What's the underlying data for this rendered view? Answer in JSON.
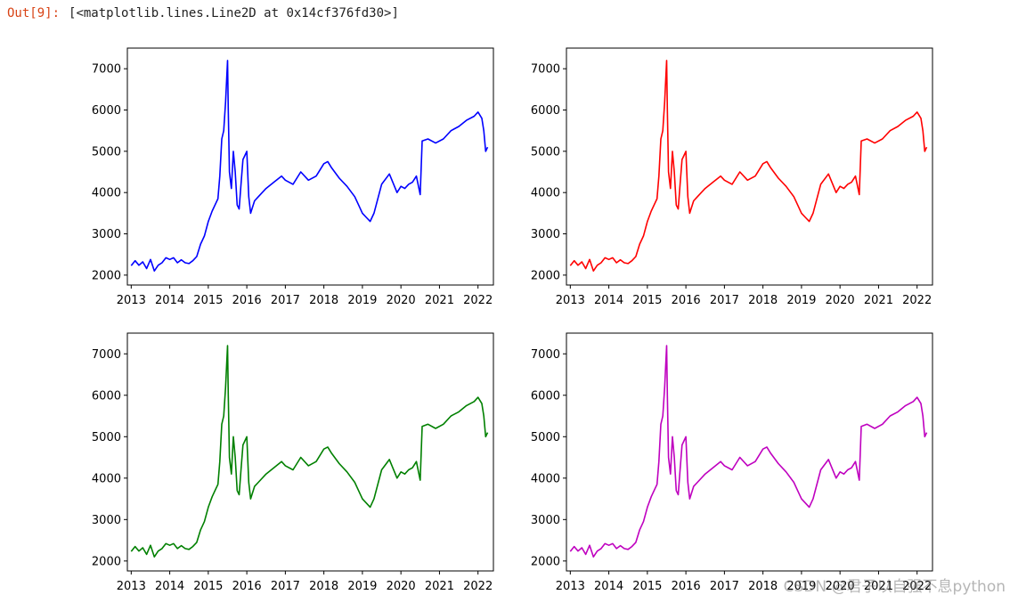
{
  "output": {
    "prompt": "Out[9]:",
    "text": "[<matplotlib.lines.Line2D at 0x14cf376fd30>]"
  },
  "watermark": "CSDN @君子以自强不息python",
  "chart_data": [
    {
      "type": "line",
      "color": "#0000ff",
      "x_ticks": [
        "2013",
        "2014",
        "2015",
        "2016",
        "2017",
        "2018",
        "2019",
        "2020",
        "2021",
        "2022"
      ],
      "y_ticks": [
        2000,
        3000,
        4000,
        5000,
        6000,
        7000
      ],
      "xlim": [
        2012.9,
        2022.4
      ],
      "ylim": [
        1760,
        7500
      ],
      "x": [
        2013.0,
        2013.1,
        2013.2,
        2013.3,
        2013.4,
        2013.5,
        2013.6,
        2013.7,
        2013.8,
        2013.9,
        2014.0,
        2014.1,
        2014.2,
        2014.3,
        2014.4,
        2014.5,
        2014.6,
        2014.7,
        2014.8,
        2014.9,
        2015.0,
        2015.1,
        2015.2,
        2015.25,
        2015.3,
        2015.35,
        2015.4,
        2015.45,
        2015.5,
        2015.52,
        2015.55,
        2015.6,
        2015.65,
        2015.7,
        2015.75,
        2015.8,
        2015.85,
        2015.9,
        2015.95,
        2016.0,
        2016.05,
        2016.1,
        2016.2,
        2016.3,
        2016.5,
        2016.7,
        2016.9,
        2017.0,
        2017.2,
        2017.4,
        2017.6,
        2017.8,
        2018.0,
        2018.1,
        2018.2,
        2018.4,
        2018.6,
        2018.8,
        2018.9,
        2019.0,
        2019.1,
        2019.2,
        2019.3,
        2019.5,
        2019.7,
        2019.9,
        2020.0,
        2020.1,
        2020.2,
        2020.3,
        2020.4,
        2020.5,
        2020.55,
        2020.7,
        2020.9,
        2021.1,
        2021.3,
        2021.5,
        2021.7,
        2021.9,
        2022.0,
        2022.1,
        2022.15,
        2022.2,
        2022.25
      ],
      "y": [
        2230,
        2350,
        2240,
        2320,
        2160,
        2380,
        2100,
        2240,
        2300,
        2420,
        2380,
        2420,
        2300,
        2370,
        2300,
        2280,
        2350,
        2450,
        2750,
        2950,
        3300,
        3550,
        3750,
        3850,
        4400,
        5300,
        5500,
        6200,
        7200,
        6000,
        4500,
        4100,
        5000,
        4500,
        3700,
        3600,
        4200,
        4800,
        4900,
        5000,
        3900,
        3500,
        3800,
        3900,
        4100,
        4250,
        4400,
        4300,
        4200,
        4500,
        4300,
        4400,
        4700,
        4750,
        4600,
        4350,
        4150,
        3900,
        3700,
        3500,
        3400,
        3300,
        3500,
        4200,
        4450,
        4000,
        4150,
        4100,
        4200,
        4250,
        4400,
        3950,
        5250,
        5300,
        5200,
        5300,
        5500,
        5600,
        5750,
        5850,
        5950,
        5800,
        5500,
        5000,
        5100
      ]
    },
    {
      "type": "line",
      "color": "#ff0000",
      "x_ticks": [
        "2013",
        "2014",
        "2015",
        "2016",
        "2017",
        "2018",
        "2019",
        "2020",
        "2021",
        "2022"
      ],
      "y_ticks": [
        2000,
        3000,
        4000,
        5000,
        6000,
        7000
      ],
      "xlim": [
        2012.9,
        2022.4
      ],
      "ylim": [
        1760,
        7500
      ],
      "x": [
        2013.0,
        2013.1,
        2013.2,
        2013.3,
        2013.4,
        2013.5,
        2013.6,
        2013.7,
        2013.8,
        2013.9,
        2014.0,
        2014.1,
        2014.2,
        2014.3,
        2014.4,
        2014.5,
        2014.6,
        2014.7,
        2014.8,
        2014.9,
        2015.0,
        2015.1,
        2015.2,
        2015.25,
        2015.3,
        2015.35,
        2015.4,
        2015.45,
        2015.5,
        2015.52,
        2015.55,
        2015.6,
        2015.65,
        2015.7,
        2015.75,
        2015.8,
        2015.85,
        2015.9,
        2015.95,
        2016.0,
        2016.05,
        2016.1,
        2016.2,
        2016.3,
        2016.5,
        2016.7,
        2016.9,
        2017.0,
        2017.2,
        2017.4,
        2017.6,
        2017.8,
        2018.0,
        2018.1,
        2018.2,
        2018.4,
        2018.6,
        2018.8,
        2018.9,
        2019.0,
        2019.1,
        2019.2,
        2019.3,
        2019.5,
        2019.7,
        2019.9,
        2020.0,
        2020.1,
        2020.2,
        2020.3,
        2020.4,
        2020.5,
        2020.55,
        2020.7,
        2020.9,
        2021.1,
        2021.3,
        2021.5,
        2021.7,
        2021.9,
        2022.0,
        2022.1,
        2022.15,
        2022.2,
        2022.25
      ],
      "y": [
        2230,
        2350,
        2240,
        2320,
        2160,
        2380,
        2100,
        2240,
        2300,
        2420,
        2380,
        2420,
        2300,
        2370,
        2300,
        2280,
        2350,
        2450,
        2750,
        2950,
        3300,
        3550,
        3750,
        3850,
        4400,
        5300,
        5500,
        6200,
        7200,
        6000,
        4500,
        4100,
        5000,
        4500,
        3700,
        3600,
        4200,
        4800,
        4900,
        5000,
        3900,
        3500,
        3800,
        3900,
        4100,
        4250,
        4400,
        4300,
        4200,
        4500,
        4300,
        4400,
        4700,
        4750,
        4600,
        4350,
        4150,
        3900,
        3700,
        3500,
        3400,
        3300,
        3500,
        4200,
        4450,
        4000,
        4150,
        4100,
        4200,
        4250,
        4400,
        3950,
        5250,
        5300,
        5200,
        5300,
        5500,
        5600,
        5750,
        5850,
        5950,
        5800,
        5500,
        5000,
        5100
      ]
    },
    {
      "type": "line",
      "color": "#008000",
      "x_ticks": [
        "2013",
        "2014",
        "2015",
        "2016",
        "2017",
        "2018",
        "2019",
        "2020",
        "2021",
        "2022"
      ],
      "y_ticks": [
        2000,
        3000,
        4000,
        5000,
        6000,
        7000
      ],
      "xlim": [
        2012.9,
        2022.4
      ],
      "ylim": [
        1760,
        7500
      ],
      "x": [
        2013.0,
        2013.1,
        2013.2,
        2013.3,
        2013.4,
        2013.5,
        2013.6,
        2013.7,
        2013.8,
        2013.9,
        2014.0,
        2014.1,
        2014.2,
        2014.3,
        2014.4,
        2014.5,
        2014.6,
        2014.7,
        2014.8,
        2014.9,
        2015.0,
        2015.1,
        2015.2,
        2015.25,
        2015.3,
        2015.35,
        2015.4,
        2015.45,
        2015.5,
        2015.52,
        2015.55,
        2015.6,
        2015.65,
        2015.7,
        2015.75,
        2015.8,
        2015.85,
        2015.9,
        2015.95,
        2016.0,
        2016.05,
        2016.1,
        2016.2,
        2016.3,
        2016.5,
        2016.7,
        2016.9,
        2017.0,
        2017.2,
        2017.4,
        2017.6,
        2017.8,
        2018.0,
        2018.1,
        2018.2,
        2018.4,
        2018.6,
        2018.8,
        2018.9,
        2019.0,
        2019.1,
        2019.2,
        2019.3,
        2019.5,
        2019.7,
        2019.9,
        2020.0,
        2020.1,
        2020.2,
        2020.3,
        2020.4,
        2020.5,
        2020.55,
        2020.7,
        2020.9,
        2021.1,
        2021.3,
        2021.5,
        2021.7,
        2021.9,
        2022.0,
        2022.1,
        2022.15,
        2022.2,
        2022.25
      ],
      "y": [
        2230,
        2350,
        2240,
        2320,
        2160,
        2380,
        2100,
        2240,
        2300,
        2420,
        2380,
        2420,
        2300,
        2370,
        2300,
        2280,
        2350,
        2450,
        2750,
        2950,
        3300,
        3550,
        3750,
        3850,
        4400,
        5300,
        5500,
        6200,
        7200,
        6000,
        4500,
        4100,
        5000,
        4500,
        3700,
        3600,
        4200,
        4800,
        4900,
        5000,
        3900,
        3500,
        3800,
        3900,
        4100,
        4250,
        4400,
        4300,
        4200,
        4500,
        4300,
        4400,
        4700,
        4750,
        4600,
        4350,
        4150,
        3900,
        3700,
        3500,
        3400,
        3300,
        3500,
        4200,
        4450,
        4000,
        4150,
        4100,
        4200,
        4250,
        4400,
        3950,
        5250,
        5300,
        5200,
        5300,
        5500,
        5600,
        5750,
        5850,
        5950,
        5800,
        5500,
        5000,
        5100
      ]
    },
    {
      "type": "line",
      "color": "#bf00bf",
      "x_ticks": [
        "2013",
        "2014",
        "2015",
        "2016",
        "2017",
        "2018",
        "2019",
        "2020",
        "2021",
        "2022"
      ],
      "y_ticks": [
        2000,
        3000,
        4000,
        5000,
        6000,
        7000
      ],
      "xlim": [
        2012.9,
        2022.4
      ],
      "ylim": [
        1760,
        7500
      ],
      "x": [
        2013.0,
        2013.1,
        2013.2,
        2013.3,
        2013.4,
        2013.5,
        2013.6,
        2013.7,
        2013.8,
        2013.9,
        2014.0,
        2014.1,
        2014.2,
        2014.3,
        2014.4,
        2014.5,
        2014.6,
        2014.7,
        2014.8,
        2014.9,
        2015.0,
        2015.1,
        2015.2,
        2015.25,
        2015.3,
        2015.35,
        2015.4,
        2015.45,
        2015.5,
        2015.52,
        2015.55,
        2015.6,
        2015.65,
        2015.7,
        2015.75,
        2015.8,
        2015.85,
        2015.9,
        2015.95,
        2016.0,
        2016.05,
        2016.1,
        2016.2,
        2016.3,
        2016.5,
        2016.7,
        2016.9,
        2017.0,
        2017.2,
        2017.4,
        2017.6,
        2017.8,
        2018.0,
        2018.1,
        2018.2,
        2018.4,
        2018.6,
        2018.8,
        2018.9,
        2019.0,
        2019.1,
        2019.2,
        2019.3,
        2019.5,
        2019.7,
        2019.9,
        2020.0,
        2020.1,
        2020.2,
        2020.3,
        2020.4,
        2020.5,
        2020.55,
        2020.7,
        2020.9,
        2021.1,
        2021.3,
        2021.5,
        2021.7,
        2021.9,
        2022.0,
        2022.1,
        2022.15,
        2022.2,
        2022.25
      ],
      "y": [
        2230,
        2350,
        2240,
        2320,
        2160,
        2380,
        2100,
        2240,
        2300,
        2420,
        2380,
        2420,
        2300,
        2370,
        2300,
        2280,
        2350,
        2450,
        2750,
        2950,
        3300,
        3550,
        3750,
        3850,
        4400,
        5300,
        5500,
        6200,
        7200,
        6000,
        4500,
        4100,
        5000,
        4500,
        3700,
        3600,
        4200,
        4800,
        4900,
        5000,
        3900,
        3500,
        3800,
        3900,
        4100,
        4250,
        4400,
        4300,
        4200,
        4500,
        4300,
        4400,
        4700,
        4750,
        4600,
        4350,
        4150,
        3900,
        3700,
        3500,
        3400,
        3300,
        3500,
        4200,
        4450,
        4000,
        4150,
        4100,
        4200,
        4250,
        4400,
        3950,
        5250,
        5300,
        5200,
        5300,
        5500,
        5600,
        5750,
        5850,
        5950,
        5800,
        5500,
        5000,
        5100
      ]
    }
  ]
}
